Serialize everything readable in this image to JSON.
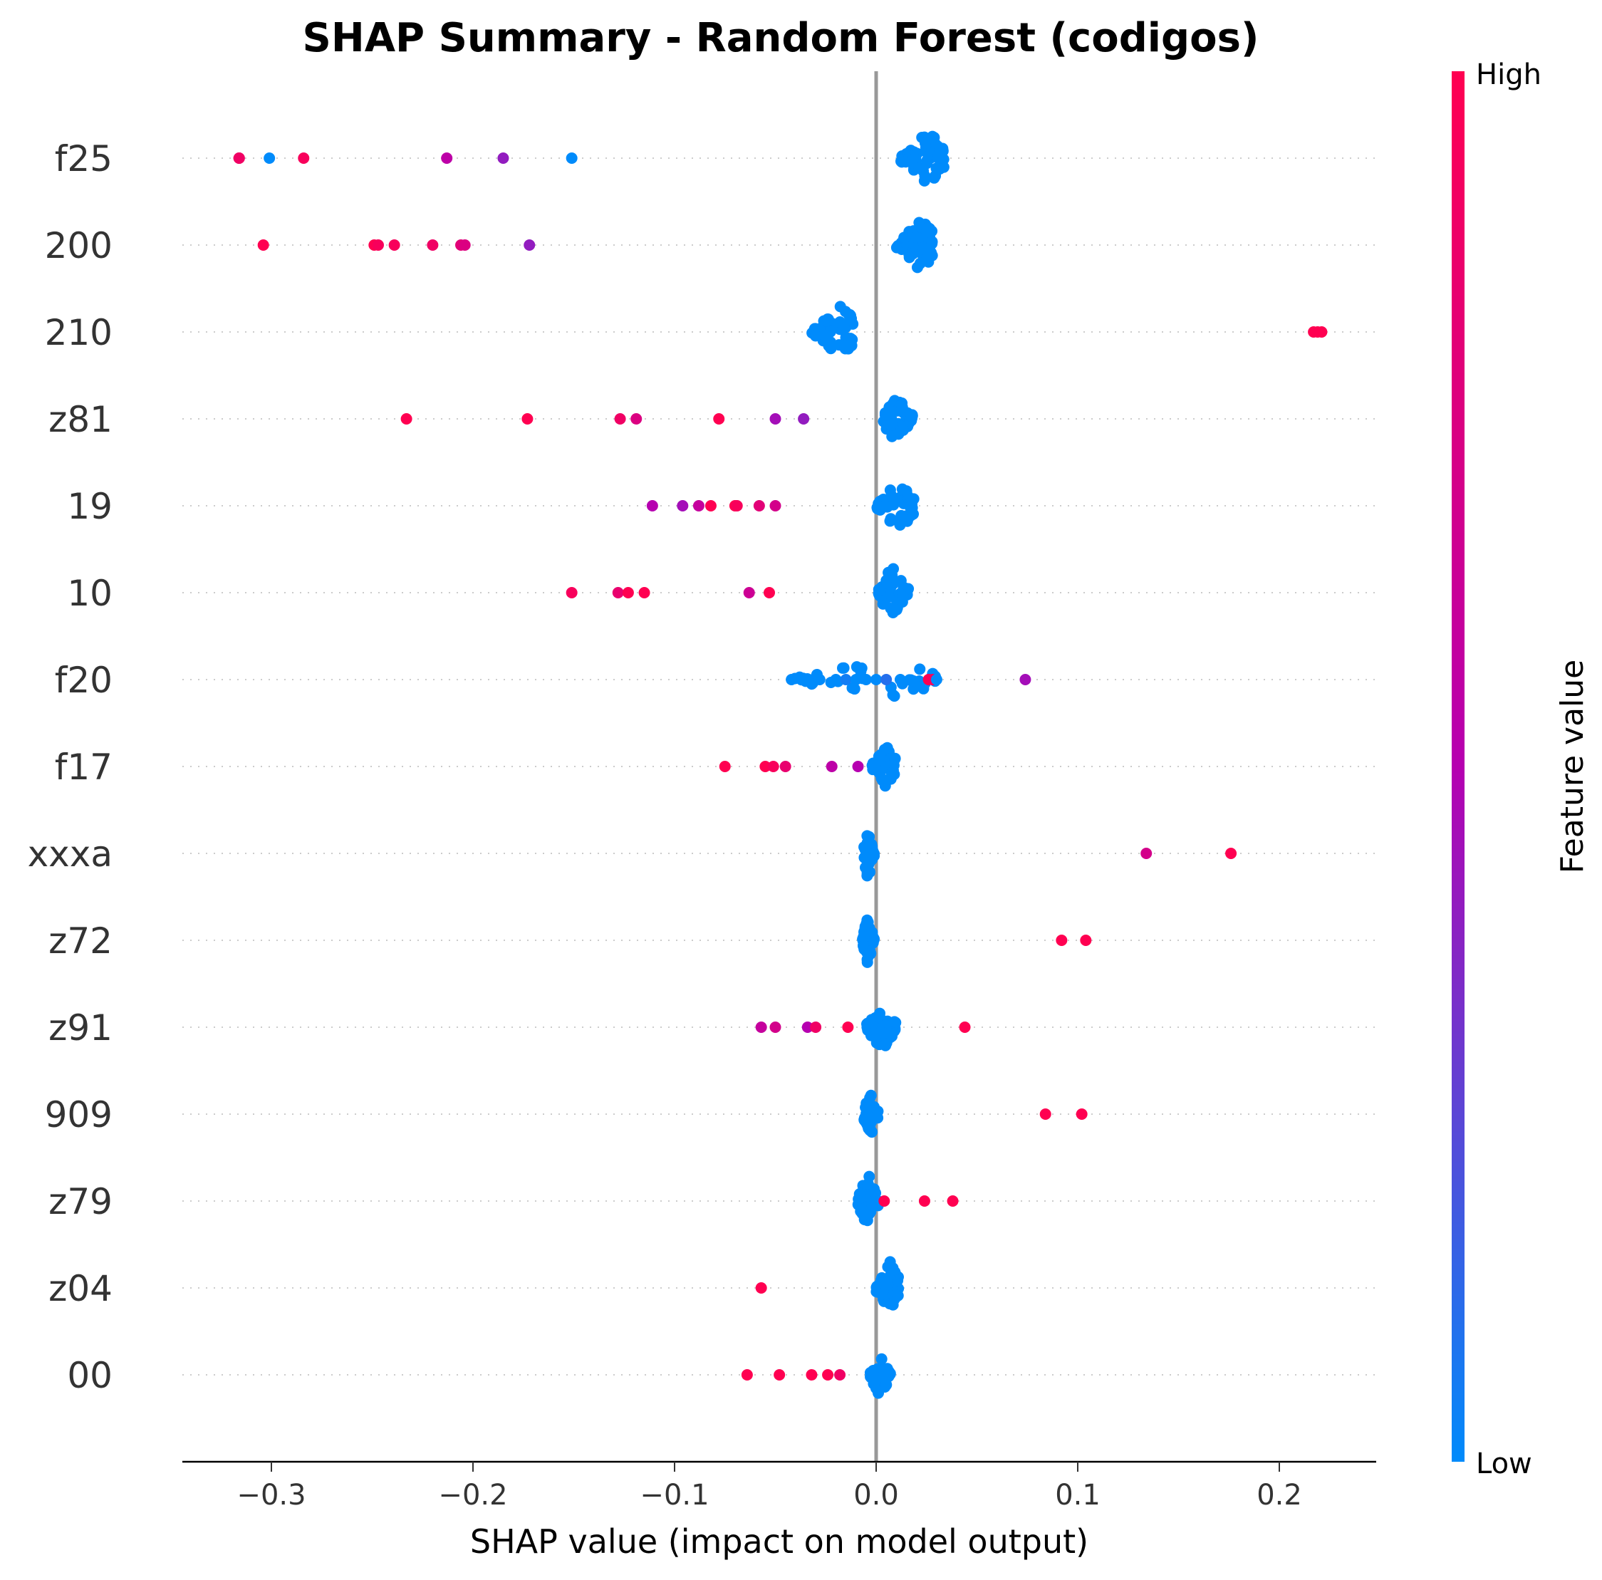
{
  "chart_data": {
    "type": "scatter",
    "title": "SHAP Summary - Random Forest (codigos)",
    "xlabel": "SHAP value (impact on model output)",
    "xlim": [
      -0.345,
      0.248
    ],
    "xticks": [
      -0.3,
      -0.2,
      -0.1,
      0.0,
      0.1,
      0.2
    ],
    "xtick_labels": [
      "−0.3",
      "−0.2",
      "−0.1",
      "0.0",
      "0.1",
      "0.2"
    ],
    "colorbar": {
      "label": "Feature value",
      "high_label": "High",
      "low_label": "Low",
      "high_color": "#ff0051",
      "mid_color": "#b600b0",
      "low_color": "#008bfb"
    },
    "zero_line_color": "#999999",
    "features": [
      {
        "name": "f25",
        "points": [
          [
            -0.316,
            1.0
          ],
          [
            -0.316,
            0.95
          ],
          [
            -0.316,
            0.9
          ],
          [
            -0.301,
            0.0
          ],
          [
            -0.284,
            0.95
          ],
          [
            -0.213,
            0.55
          ],
          [
            -0.185,
            0.4
          ],
          [
            -0.151,
            0.0
          ]
        ],
        "cluster": {
          "min": 0.012,
          "max": 0.034,
          "center": 0.026,
          "height": 1.0,
          "count": 60,
          "value": 0.0
        }
      },
      {
        "name": "200",
        "points": [
          [
            -0.304,
            1.0
          ],
          [
            -0.249,
            1.0
          ],
          [
            -0.247,
            0.95
          ],
          [
            -0.239,
            0.95
          ],
          [
            -0.22,
            0.9
          ],
          [
            -0.206,
            0.8
          ],
          [
            -0.204,
            0.75
          ],
          [
            -0.172,
            0.4
          ]
        ],
        "cluster": {
          "min": 0.01,
          "max": 0.028,
          "center": 0.022,
          "height": 1.0,
          "count": 60,
          "value": 0.0
        }
      },
      {
        "name": "210",
        "points": [
          [
            0.217,
            1.0
          ],
          [
            0.219,
            1.0
          ],
          [
            0.221,
            1.0
          ]
        ],
        "cluster": {
          "min": -0.032,
          "max": -0.011,
          "center": -0.018,
          "height": 1.0,
          "count": 55,
          "value": 0.0
        }
      },
      {
        "name": "z81",
        "points": [
          [
            -0.233,
            1.0
          ],
          [
            -0.173,
            1.0
          ],
          [
            -0.127,
            0.9
          ],
          [
            -0.119,
            0.75
          ],
          [
            -0.078,
            1.0
          ],
          [
            -0.05,
            0.45
          ],
          [
            -0.036,
            0.4
          ]
        ],
        "cluster": {
          "min": 0.003,
          "max": 0.018,
          "center": 0.01,
          "height": 1.0,
          "count": 50,
          "value": 0.0
        }
      },
      {
        "name": "19",
        "points": [
          [
            -0.111,
            0.5
          ],
          [
            -0.096,
            0.45
          ],
          [
            -0.088,
            0.6
          ],
          [
            -0.082,
            1.0
          ],
          [
            -0.07,
            1.0
          ],
          [
            -0.069,
            0.95
          ],
          [
            -0.058,
            0.8
          ],
          [
            -0.05,
            0.7
          ]
        ],
        "cluster": {
          "min": 0.0,
          "max": 0.019,
          "center": 0.011,
          "height": 1.0,
          "count": 50,
          "value": 0.0
        }
      },
      {
        "name": "10",
        "points": [
          [
            -0.151,
            0.95
          ],
          [
            -0.128,
            0.85
          ],
          [
            -0.123,
            1.0
          ],
          [
            -0.115,
            1.0
          ],
          [
            -0.063,
            0.65
          ],
          [
            -0.053,
            1.0
          ]
        ],
        "cluster": {
          "min": 0.001,
          "max": 0.016,
          "center": 0.008,
          "height": 1.0,
          "count": 50,
          "value": 0.0
        }
      },
      {
        "name": "f20",
        "points": [
          [
            -0.042,
            0.0
          ],
          [
            -0.028,
            0.0
          ],
          [
            -0.02,
            0.0
          ],
          [
            -0.015,
            0.05
          ],
          [
            -0.01,
            0.0
          ],
          [
            -0.005,
            0.0
          ],
          [
            0.0,
            0.0
          ],
          [
            0.005,
            0.1
          ],
          [
            0.012,
            0.0
          ],
          [
            0.026,
            1.0
          ],
          [
            0.028,
            0.95
          ],
          [
            0.03,
            0.0
          ],
          [
            0.074,
            0.45
          ]
        ],
        "cluster": {
          "min": -0.042,
          "max": 0.03,
          "center": 0.0,
          "height": 0.8,
          "count": 40,
          "value": 0.0
        }
      },
      {
        "name": "f17",
        "points": [
          [
            -0.075,
            1.0
          ],
          [
            -0.055,
            1.0
          ],
          [
            -0.051,
            0.95
          ],
          [
            -0.045,
            0.85
          ],
          [
            -0.022,
            0.55
          ],
          [
            -0.009,
            0.5
          ]
        ],
        "cluster": {
          "min": -0.002,
          "max": 0.01,
          "center": 0.005,
          "height": 0.8,
          "count": 45,
          "value": 0.0
        }
      },
      {
        "name": "xxxa",
        "points": [
          [
            0.134,
            0.7
          ],
          [
            0.176,
            1.0
          ]
        ],
        "cluster": {
          "min": -0.006,
          "max": -0.001,
          "center": -0.004,
          "height": 1.0,
          "count": 40,
          "value": 0.0
        }
      },
      {
        "name": "z72",
        "points": [
          [
            0.092,
            1.0
          ],
          [
            0.104,
            1.0
          ]
        ],
        "cluster": {
          "min": -0.007,
          "max": -0.001,
          "center": -0.004,
          "height": 1.0,
          "count": 40,
          "value": 0.0
        }
      },
      {
        "name": "z91",
        "points": [
          [
            -0.057,
            0.6
          ],
          [
            -0.05,
            0.7
          ],
          [
            -0.034,
            0.5
          ],
          [
            -0.03,
            0.9
          ],
          [
            -0.014,
            1.0
          ],
          [
            0.044,
            1.0
          ]
        ],
        "cluster": {
          "min": -0.005,
          "max": 0.01,
          "center": 0.003,
          "height": 1.0,
          "count": 45,
          "value": 0.0
        }
      },
      {
        "name": "909",
        "points": [
          [
            0.084,
            1.0
          ],
          [
            0.102,
            1.0
          ]
        ],
        "cluster": {
          "min": -0.006,
          "max": 0.001,
          "center": -0.003,
          "height": 1.0,
          "count": 40,
          "value": 0.0
        }
      },
      {
        "name": "z79",
        "points": [
          [
            0.004,
            1.0
          ],
          [
            0.024,
            1.0
          ],
          [
            0.038,
            1.0
          ]
        ],
        "cluster": {
          "min": -0.009,
          "max": 0.002,
          "center": -0.004,
          "height": 1.0,
          "count": 45,
          "value": 0.0
        }
      },
      {
        "name": "z04",
        "points": [
          [
            -0.057,
            1.0
          ]
        ],
        "cluster": {
          "min": 0.0,
          "max": 0.011,
          "center": 0.007,
          "height": 1.0,
          "count": 45,
          "value": 0.0
        }
      },
      {
        "name": "00",
        "points": [
          [
            -0.064,
            1.0
          ],
          [
            -0.048,
            1.0
          ],
          [
            -0.032,
            1.0
          ],
          [
            -0.024,
            1.0
          ],
          [
            -0.018,
            0.9
          ]
        ],
        "cluster": {
          "min": -0.003,
          "max": 0.007,
          "center": 0.002,
          "height": 1.0,
          "count": 40,
          "value": 0.0
        }
      }
    ]
  }
}
